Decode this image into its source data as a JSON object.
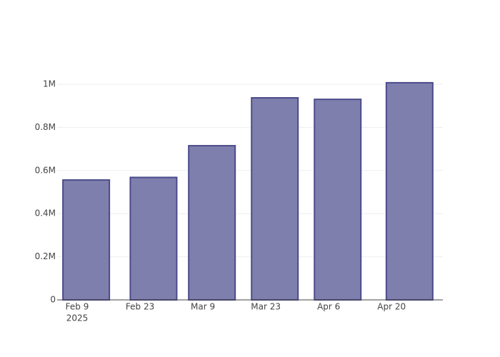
{
  "chart_data": {
    "type": "bar",
    "x": [
      "2025-02-11",
      "2025-02-26",
      "2025-03-11",
      "2025-03-25",
      "2025-04-08",
      "2025-04-24"
    ],
    "values": [
      556000,
      568000,
      715000,
      937000,
      930000,
      1007000
    ],
    "color": "#7f7fae",
    "edge_color": "#4b4b8b",
    "xlim": [
      "2025-02-04T13:00:00Z",
      "2025-05-01T10:00:00Z"
    ],
    "xticks": [
      {
        "value": "2025-02-09",
        "label": "Feb 9"
      },
      {
        "value": "2025-02-23",
        "label": "Feb 23"
      },
      {
        "value": "2025-03-09",
        "label": "Mar 9"
      },
      {
        "value": "2025-03-23",
        "label": "Mar 23"
      },
      {
        "value": "2025-04-06",
        "label": "Apr 6"
      },
      {
        "value": "2025-04-20",
        "label": "Apr 20"
      }
    ],
    "x_year_label": "2025",
    "ylim": [
      0,
      1059600
    ],
    "yticks": [
      0,
      {
        "value": 200000,
        "label": "0.2M"
      },
      {
        "value": 400000,
        "label": "0.4M"
      },
      {
        "value": 600000,
        "label": "0.6M"
      },
      {
        "value": 800000,
        "label": "0.8M"
      },
      {
        "value": 1000000,
        "label": "1M"
      }
    ],
    "grid": true
  }
}
